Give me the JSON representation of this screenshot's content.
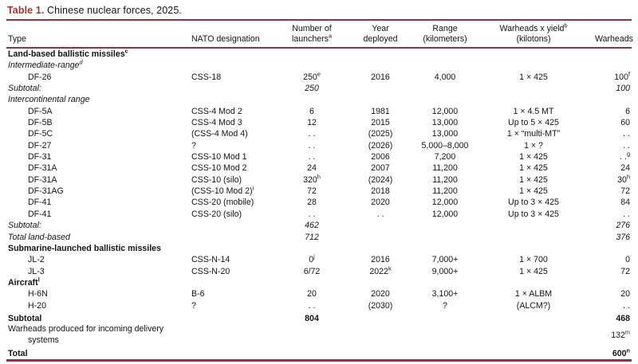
{
  "title": {
    "label": "Table 1.",
    "caption": " Chinese nuclear forces, 2025."
  },
  "colors": {
    "accent": "#a3342d",
    "rule": "#8f3344"
  },
  "columns": [
    {
      "name": "type",
      "lines": [
        "Type"
      ]
    },
    {
      "name": "nato-designation",
      "lines": [
        "NATO designation"
      ]
    },
    {
      "name": "number-of-launchers",
      "lines": [
        "Number of",
        {
          "t": "launchers",
          "sup": "a"
        }
      ]
    },
    {
      "name": "year-deployed",
      "lines": [
        "Year",
        "deployed"
      ]
    },
    {
      "name": "range-kilometers",
      "lines": [
        "Range",
        "(kilometers)"
      ]
    },
    {
      "name": "warheads-x-yield",
      "lines": [
        {
          "t": "Warheads x yield",
          "sup": "b"
        },
        "(kilotons)"
      ]
    },
    {
      "name": "warheads",
      "lines": [
        "Warheads"
      ]
    }
  ],
  "rows": [
    {
      "style": "section",
      "cells": [
        {
          "t": "Land-based ballistic missiles",
          "sup": "c"
        },
        "",
        "",
        "",
        "",
        "",
        ""
      ]
    },
    {
      "style": "italic",
      "cells": [
        {
          "t": "Intermediate-range",
          "sup": "d"
        },
        "",
        "",
        "",
        "",
        "",
        ""
      ]
    },
    {
      "style": "normal",
      "indent": true,
      "cells": [
        "DF-26",
        "CSS-18",
        {
          "t": "250",
          "sup": "e"
        },
        "2016",
        "4,000",
        "1 × 425",
        {
          "t": "100",
          "sup": "f"
        }
      ]
    },
    {
      "style": "italic",
      "cells": [
        "Subtotal:",
        "",
        "250",
        "",
        "",
        "",
        "100"
      ]
    },
    {
      "style": "italic",
      "cells": [
        "Intercontinental range",
        "",
        "",
        "",
        "",
        "",
        ""
      ]
    },
    {
      "style": "normal",
      "indent": true,
      "cells": [
        "DF-5A",
        "CSS-4 Mod 2",
        "6",
        "1981",
        "12,000",
        "1 × 4.5 MT",
        "6"
      ]
    },
    {
      "style": "normal",
      "indent": true,
      "cells": [
        "DF-5B",
        "CSS-4 Mod 3",
        "12",
        "2015",
        "13,000",
        "Up to 5 × 425",
        "60"
      ]
    },
    {
      "style": "normal",
      "indent": true,
      "cells": [
        "DF-5C",
        "(CSS-4 Mod 4)",
        ". .",
        "(2025)",
        "13,000",
        "1 × “multi-MT”",
        ". ."
      ]
    },
    {
      "style": "normal",
      "indent": true,
      "cells": [
        "DF-27",
        "?",
        ". .",
        "(2026)",
        "5,000–8,000",
        "1 × ?",
        ". ."
      ]
    },
    {
      "style": "normal",
      "indent": true,
      "cells": [
        "DF-31",
        "CSS-10 Mod 1",
        ". .",
        "2006",
        "7,200",
        "1 × 425",
        {
          "t": ". .",
          "sup": "g"
        }
      ]
    },
    {
      "style": "normal",
      "indent": true,
      "cells": [
        "DF-31A",
        "CSS-10 Mod 2",
        "24",
        "2007",
        "11,200",
        "1 × 425",
        "24"
      ]
    },
    {
      "style": "normal",
      "indent": true,
      "cells": [
        "DF-31A",
        "CSS-10 (silo)",
        {
          "t": "320",
          "sup": "h"
        },
        "(2024)",
        "11,200",
        "1 × 425",
        {
          "t": "30",
          "sup": "h"
        }
      ]
    },
    {
      "style": "normal",
      "indent": true,
      "cells": [
        "DF-31AG",
        {
          "t": "(CSS-10 Mod 2)",
          "sup": "i"
        },
        "72",
        "2018",
        "11,200",
        "1 × 425",
        "72"
      ]
    },
    {
      "style": "normal",
      "indent": true,
      "cells": [
        "DF-41",
        "CSS-20 (mobile)",
        "28",
        "2020",
        "12,000",
        "Up to 3 × 425",
        "84"
      ]
    },
    {
      "style": "normal",
      "indent": true,
      "cells": [
        "DF-41",
        "CSS-20 (silo)",
        ". .",
        ". .",
        "12,000",
        "Up to 3 × 425",
        ". ."
      ]
    },
    {
      "style": "italic",
      "cells": [
        "Subtotal:",
        "",
        "462",
        "",
        "",
        "",
        "276"
      ]
    },
    {
      "style": "italic",
      "cells": [
        "Total land-based",
        "",
        "712",
        "",
        "",
        "",
        "376"
      ]
    },
    {
      "style": "section",
      "cells": [
        "Submarine-launched ballistic missiles",
        "",
        "",
        "",
        "",
        "",
        ""
      ]
    },
    {
      "style": "normal",
      "indent": true,
      "cells": [
        "JL-2",
        "CSS-N-14",
        {
          "t": "0",
          "sup": "j"
        },
        "2016",
        "7,000+",
        "1 × 700",
        "0"
      ]
    },
    {
      "style": "normal",
      "indent": true,
      "cells": [
        "JL-3",
        "CSS-N-20",
        "6/72",
        {
          "t": "2022",
          "sup": "k"
        },
        "9,000+",
        "1 × 425",
        "72"
      ]
    },
    {
      "style": "section",
      "cells": [
        {
          "t": "Aircraft",
          "sup": "l"
        },
        "",
        "",
        "",
        "",
        "",
        ""
      ]
    },
    {
      "style": "normal",
      "indent": true,
      "cells": [
        "H-6N",
        "B-6",
        "20",
        "2020",
        "3,100+",
        "1 × ALBM",
        "20"
      ]
    },
    {
      "style": "normal",
      "indent": true,
      "cells": [
        "H-20",
        "?",
        ". .",
        "(2030)",
        "?",
        "(ALCM?)",
        ". ."
      ]
    },
    {
      "style": "bold",
      "cells": [
        "Subtotal",
        "",
        "804",
        "",
        "",
        "",
        "468"
      ]
    },
    {
      "style": "normal",
      "hang": true,
      "cells": [
        "Warheads produced for incoming delivery systems",
        "",
        "",
        "",
        "",
        "",
        {
          "t": "132",
          "sup": "m"
        }
      ]
    },
    {
      "style": "bold",
      "cells": [
        "Total",
        "",
        "",
        "",
        "",
        "",
        {
          "t": "600",
          "sup": "n"
        }
      ]
    }
  ]
}
